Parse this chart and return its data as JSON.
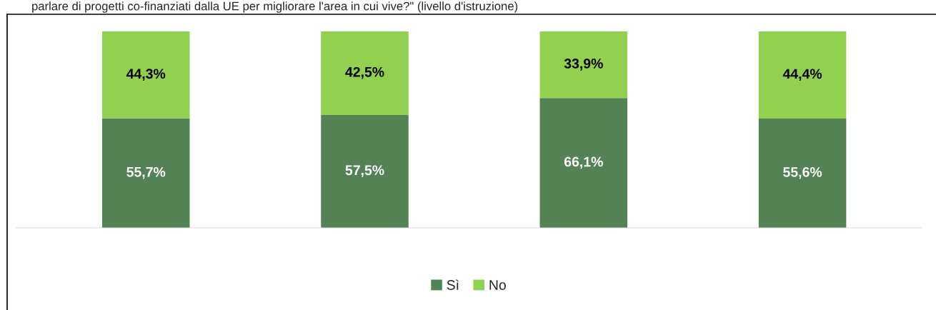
{
  "chart_data": {
    "type": "bar",
    "stacked": true,
    "title": "parlare di progetti co-finanziati dalla UE per migliorare l'area in cui vive?\" (livello d'istruzione)",
    "categories": [
      null,
      null,
      null,
      null
    ],
    "series": [
      {
        "name": "Sì",
        "color": "#538354",
        "values": [
          55.7,
          57.5,
          66.1,
          55.6
        ],
        "value_labels": [
          "55,7%",
          "57,5%",
          "66,1%",
          "55,6%"
        ]
      },
      {
        "name": "No",
        "color": "#92d050",
        "values": [
          44.3,
          42.5,
          33.9,
          44.4
        ],
        "value_labels": [
          "44,3%",
          "42,5%",
          "33,9%",
          "44,4%"
        ]
      }
    ],
    "legend": "bottom"
  }
}
